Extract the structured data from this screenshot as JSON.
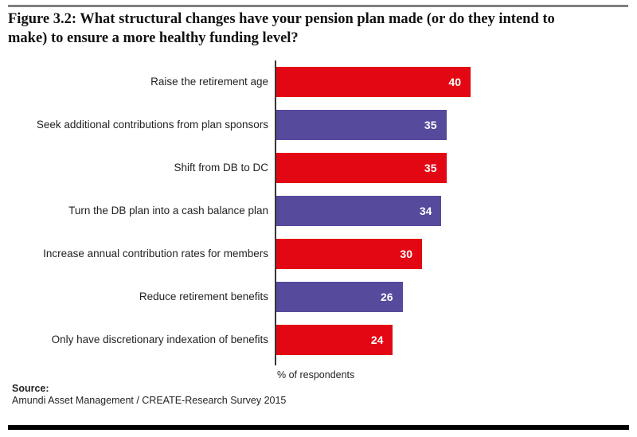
{
  "figure": {
    "title_lines": [
      "Figure 3.2: What structural changes have your pension plan made (or do they intend to",
      "make) to ensure a more healthy funding level?"
    ]
  },
  "chart_data": {
    "type": "bar",
    "orientation": "horizontal",
    "title": "Figure 3.2: What structural changes have your pension plan made (or do they intend to make) to ensure a more healthy funding level?",
    "categories": [
      "Raise the retirement age",
      "Seek additional contributions from plan sponsors",
      "Shift from DB to DC",
      "Turn the DB plan into a cash balance plan",
      "Increase annual contribution rates for members",
      "Reduce retirement benefits",
      "Only have discretionary indexation of benefits"
    ],
    "values": [
      40,
      35,
      35,
      34,
      30,
      26,
      24
    ],
    "bar_colors": [
      "#e30613",
      "#554a9c",
      "#e30613",
      "#554a9c",
      "#e30613",
      "#554a9c",
      "#e30613"
    ],
    "value_label_position": "inside-end",
    "xlabel": "% of respondents",
    "xlim": [
      0,
      40
    ],
    "grid": false,
    "legend": false
  },
  "source": {
    "label": "Source:",
    "text": "Amundi Asset Management / CREATE-Research Survey 2015"
  },
  "colors": {
    "bar_red": "#e30613",
    "bar_purple": "#554a9c",
    "axis": "#373737",
    "top_rule": "#7f7f7f",
    "bottom_rule": "#000000",
    "value_text": "#ffffff",
    "text": "#231f20"
  }
}
